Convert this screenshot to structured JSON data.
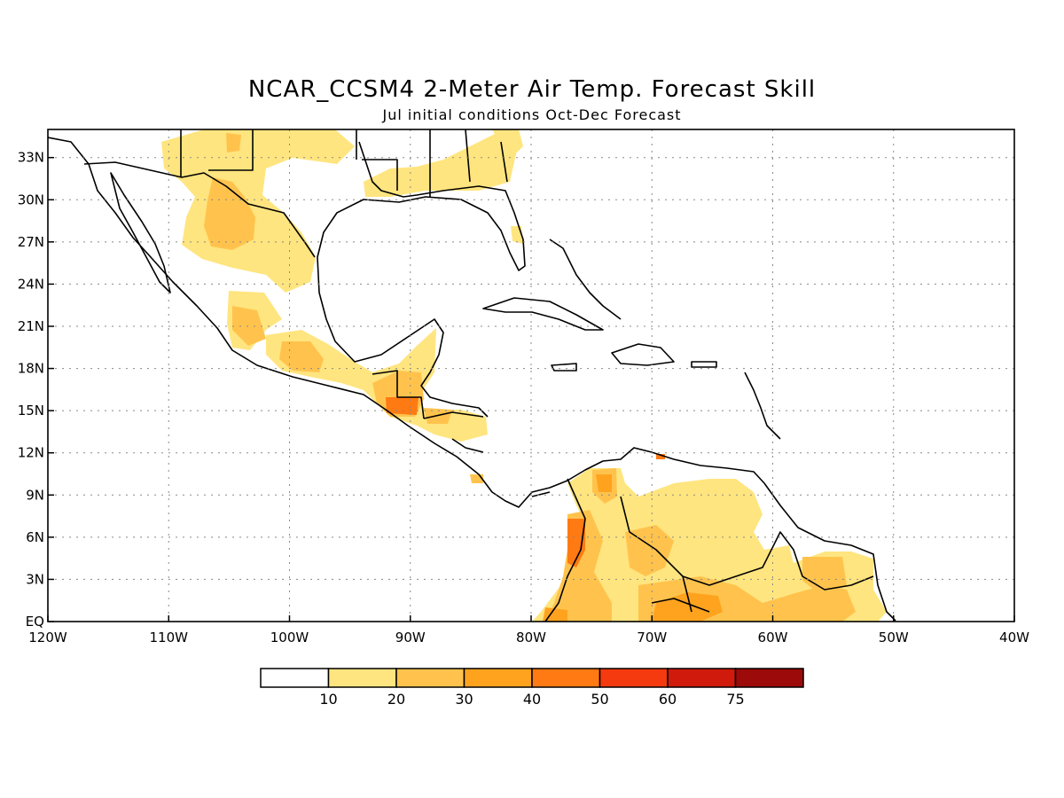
{
  "title": "NCAR_CCSM4 2-Meter Air Temp. Forecast Skill",
  "subtitle": "Jul initial conditions  Oct-Dec Forecast",
  "map": {
    "lon_range": [
      -120,
      -40
    ],
    "lat_range": [
      0,
      35
    ],
    "lat_ticks": [
      {
        "value": 33,
        "label": "33N"
      },
      {
        "value": 30,
        "label": "30N"
      },
      {
        "value": 27,
        "label": "27N"
      },
      {
        "value": 24,
        "label": "24N"
      },
      {
        "value": 21,
        "label": "21N"
      },
      {
        "value": 18,
        "label": "18N"
      },
      {
        "value": 15,
        "label": "15N"
      },
      {
        "value": 12,
        "label": "12N"
      },
      {
        "value": 9,
        "label": "9N"
      },
      {
        "value": 6,
        "label": "6N"
      },
      {
        "value": 3,
        "label": "3N"
      },
      {
        "value": 0,
        "label": "EQ"
      }
    ],
    "lon_ticks": [
      {
        "value": -120,
        "label": "120W"
      },
      {
        "value": -110,
        "label": "110W"
      },
      {
        "value": -100,
        "label": "100W"
      },
      {
        "value": -90,
        "label": "90W"
      },
      {
        "value": -80,
        "label": "80W"
      },
      {
        "value": -70,
        "label": "70W"
      },
      {
        "value": -60,
        "label": "60W"
      },
      {
        "value": -50,
        "label": "50W"
      },
      {
        "value": -40,
        "label": "40W"
      }
    ],
    "grid": "dotted"
  },
  "colorbar": {
    "bins": [
      {
        "color": "#ffffff"
      },
      {
        "color": "#ffe57f"
      },
      {
        "color": "#ffc34d"
      },
      {
        "color": "#ffa31f"
      },
      {
        "color": "#ff7a12"
      },
      {
        "color": "#f43a0e"
      },
      {
        "color": "#d01a0b"
      },
      {
        "color": "#9c0a0a"
      }
    ],
    "labels": [
      "10",
      "20",
      "30",
      "40",
      "50",
      "60",
      "75"
    ]
  }
}
